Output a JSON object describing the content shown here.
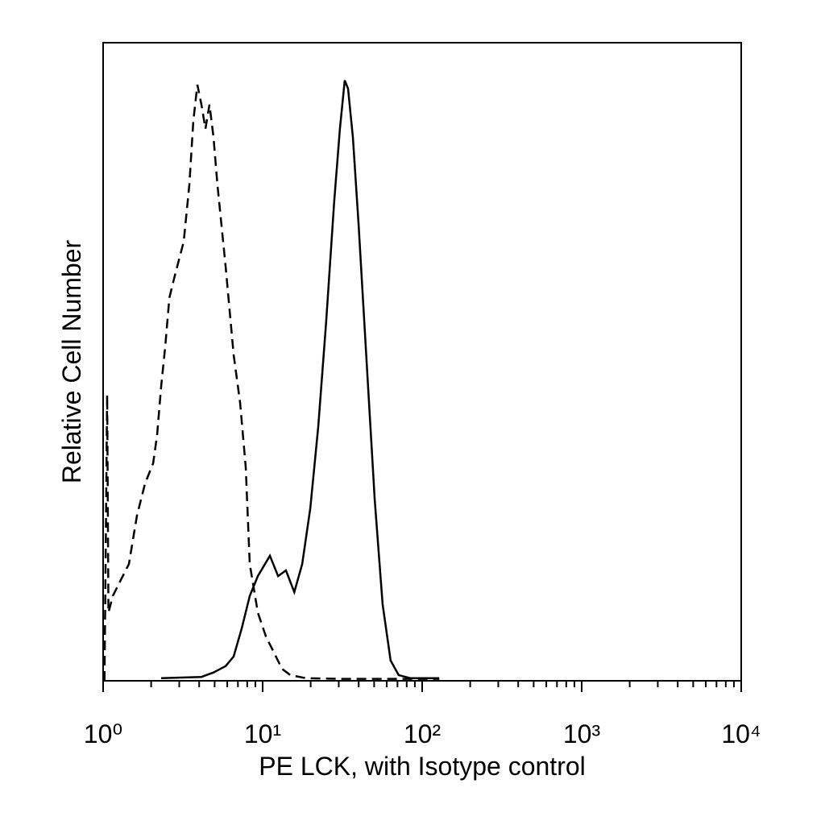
{
  "chart_data": {
    "type": "line",
    "xlabel": "PE LCK, with Isotype control",
    "ylabel": "Relative Cell Number",
    "xscale": "log",
    "xlim": [
      1,
      10000
    ],
    "ylim": [
      0,
      100
    ],
    "xticks": [
      {
        "value": 1,
        "label": "10⁰"
      },
      {
        "value": 10,
        "label": "10¹"
      },
      {
        "value": 100,
        "label": "10²"
      },
      {
        "value": 1000,
        "label": "10³"
      },
      {
        "value": 10000,
        "label": "10⁴"
      }
    ],
    "xminorticks": [
      2,
      3,
      4,
      5,
      6,
      7,
      8,
      9,
      20,
      30,
      40,
      50,
      60,
      70,
      80,
      90,
      200,
      300,
      400,
      500,
      600,
      700,
      800,
      900,
      2000,
      3000,
      4000,
      5000,
      6000,
      7000,
      8000,
      9000
    ],
    "series": [
      {
        "color": "#000000",
        "linestyle": "dashed",
        "x": [
          1.02,
          1.06,
          1.08,
          1.15,
          1.29,
          1.45,
          1.63,
          1.83,
          2.06,
          2.18,
          2.31,
          2.45,
          2.6,
          2.75,
          2.92,
          3.2,
          3.47,
          3.68,
          3.9,
          4.13,
          4.38,
          4.64,
          4.92,
          5.21,
          5.86,
          6.58,
          7.22,
          7.83,
          8.3,
          9.33,
          10.5,
          11.8,
          13.2,
          14.9,
          18.7,
          29.8,
          95.5,
          128
        ],
        "values": [
          0,
          44.8,
          10.7,
          13.3,
          15.8,
          18.3,
          25.9,
          30.9,
          34.1,
          38.5,
          46.1,
          52.4,
          60,
          62.5,
          65,
          68.8,
          77.7,
          87.8,
          93.4,
          90.3,
          86.5,
          90.3,
          85.2,
          77.7,
          65,
          51.1,
          43.6,
          33.5,
          18.3,
          10.7,
          6.9,
          4.4,
          1.9,
          0.9,
          0.4,
          0.3,
          0.3,
          0.3
        ]
      },
      {
        "color": "#000000",
        "linestyle": "solid",
        "x": [
          2.31,
          4.13,
          4.92,
          5.86,
          6.58,
          7.39,
          8.3,
          9.33,
          11.1,
          12.5,
          14,
          15.8,
          17.7,
          19.9,
          22.3,
          25,
          28.1,
          30.5,
          32.7,
          34.3,
          36.8,
          40,
          44.9,
          50.4,
          56.5,
          63.4,
          71.2,
          84.5,
          128
        ],
        "values": [
          0.4,
          0.6,
          1.3,
          2.3,
          3.8,
          8.2,
          13.3,
          16.4,
          19.6,
          16.4,
          17.3,
          13.9,
          18.3,
          27.1,
          39.8,
          56.2,
          75.1,
          86.5,
          94.1,
          92.8,
          85.2,
          71.3,
          49.9,
          28.4,
          12,
          3.2,
          0.9,
          0.4,
          0.4
        ]
      }
    ]
  }
}
